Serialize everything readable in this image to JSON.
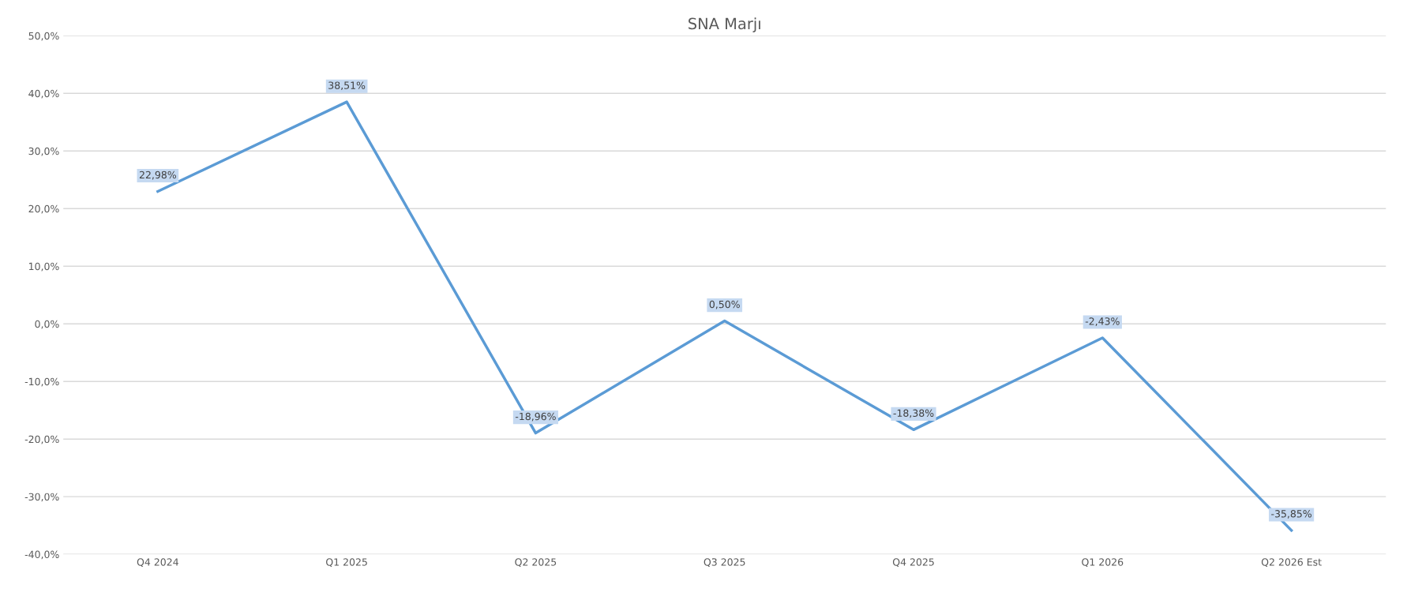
{
  "chart_data": {
    "type": "line",
    "title": "SNA Marjı",
    "categories": [
      "Q4 2024",
      "Q1 2025",
      "Q2 2025",
      "Q3 2025",
      "Q4 2025",
      "Q1 2026",
      "Q2 2026 Est"
    ],
    "series": [
      {
        "color": "#5b9bd5",
        "values": [
          22.98,
          38.51,
          -18.96,
          0.5,
          -18.38,
          -2.43,
          -35.85
        ],
        "value_labels": [
          "22,98%",
          "38,51%",
          "-18,96%",
          "0,50%",
          "-18,38%",
          "-2,43%",
          "-35,85%"
        ]
      }
    ],
    "ylim": [
      -40,
      50
    ],
    "yticks": [
      {
        "value": -40,
        "label": "-40,0%"
      },
      {
        "value": -30,
        "label": "-30,0%"
      },
      {
        "value": -20,
        "label": "-20,0%"
      },
      {
        "value": -10,
        "label": "-10,0%"
      },
      {
        "value": 0,
        "label": "0,0%"
      },
      {
        "value": 10,
        "label": "10,0%"
      },
      {
        "value": 20,
        "label": "20,0%"
      },
      {
        "value": 30,
        "label": "30,0%"
      },
      {
        "value": 40,
        "label": "40,0%"
      },
      {
        "value": 50,
        "label": "50,0%"
      }
    ],
    "grid": "y",
    "marker": "none",
    "line_style": "solid",
    "legend": false
  }
}
